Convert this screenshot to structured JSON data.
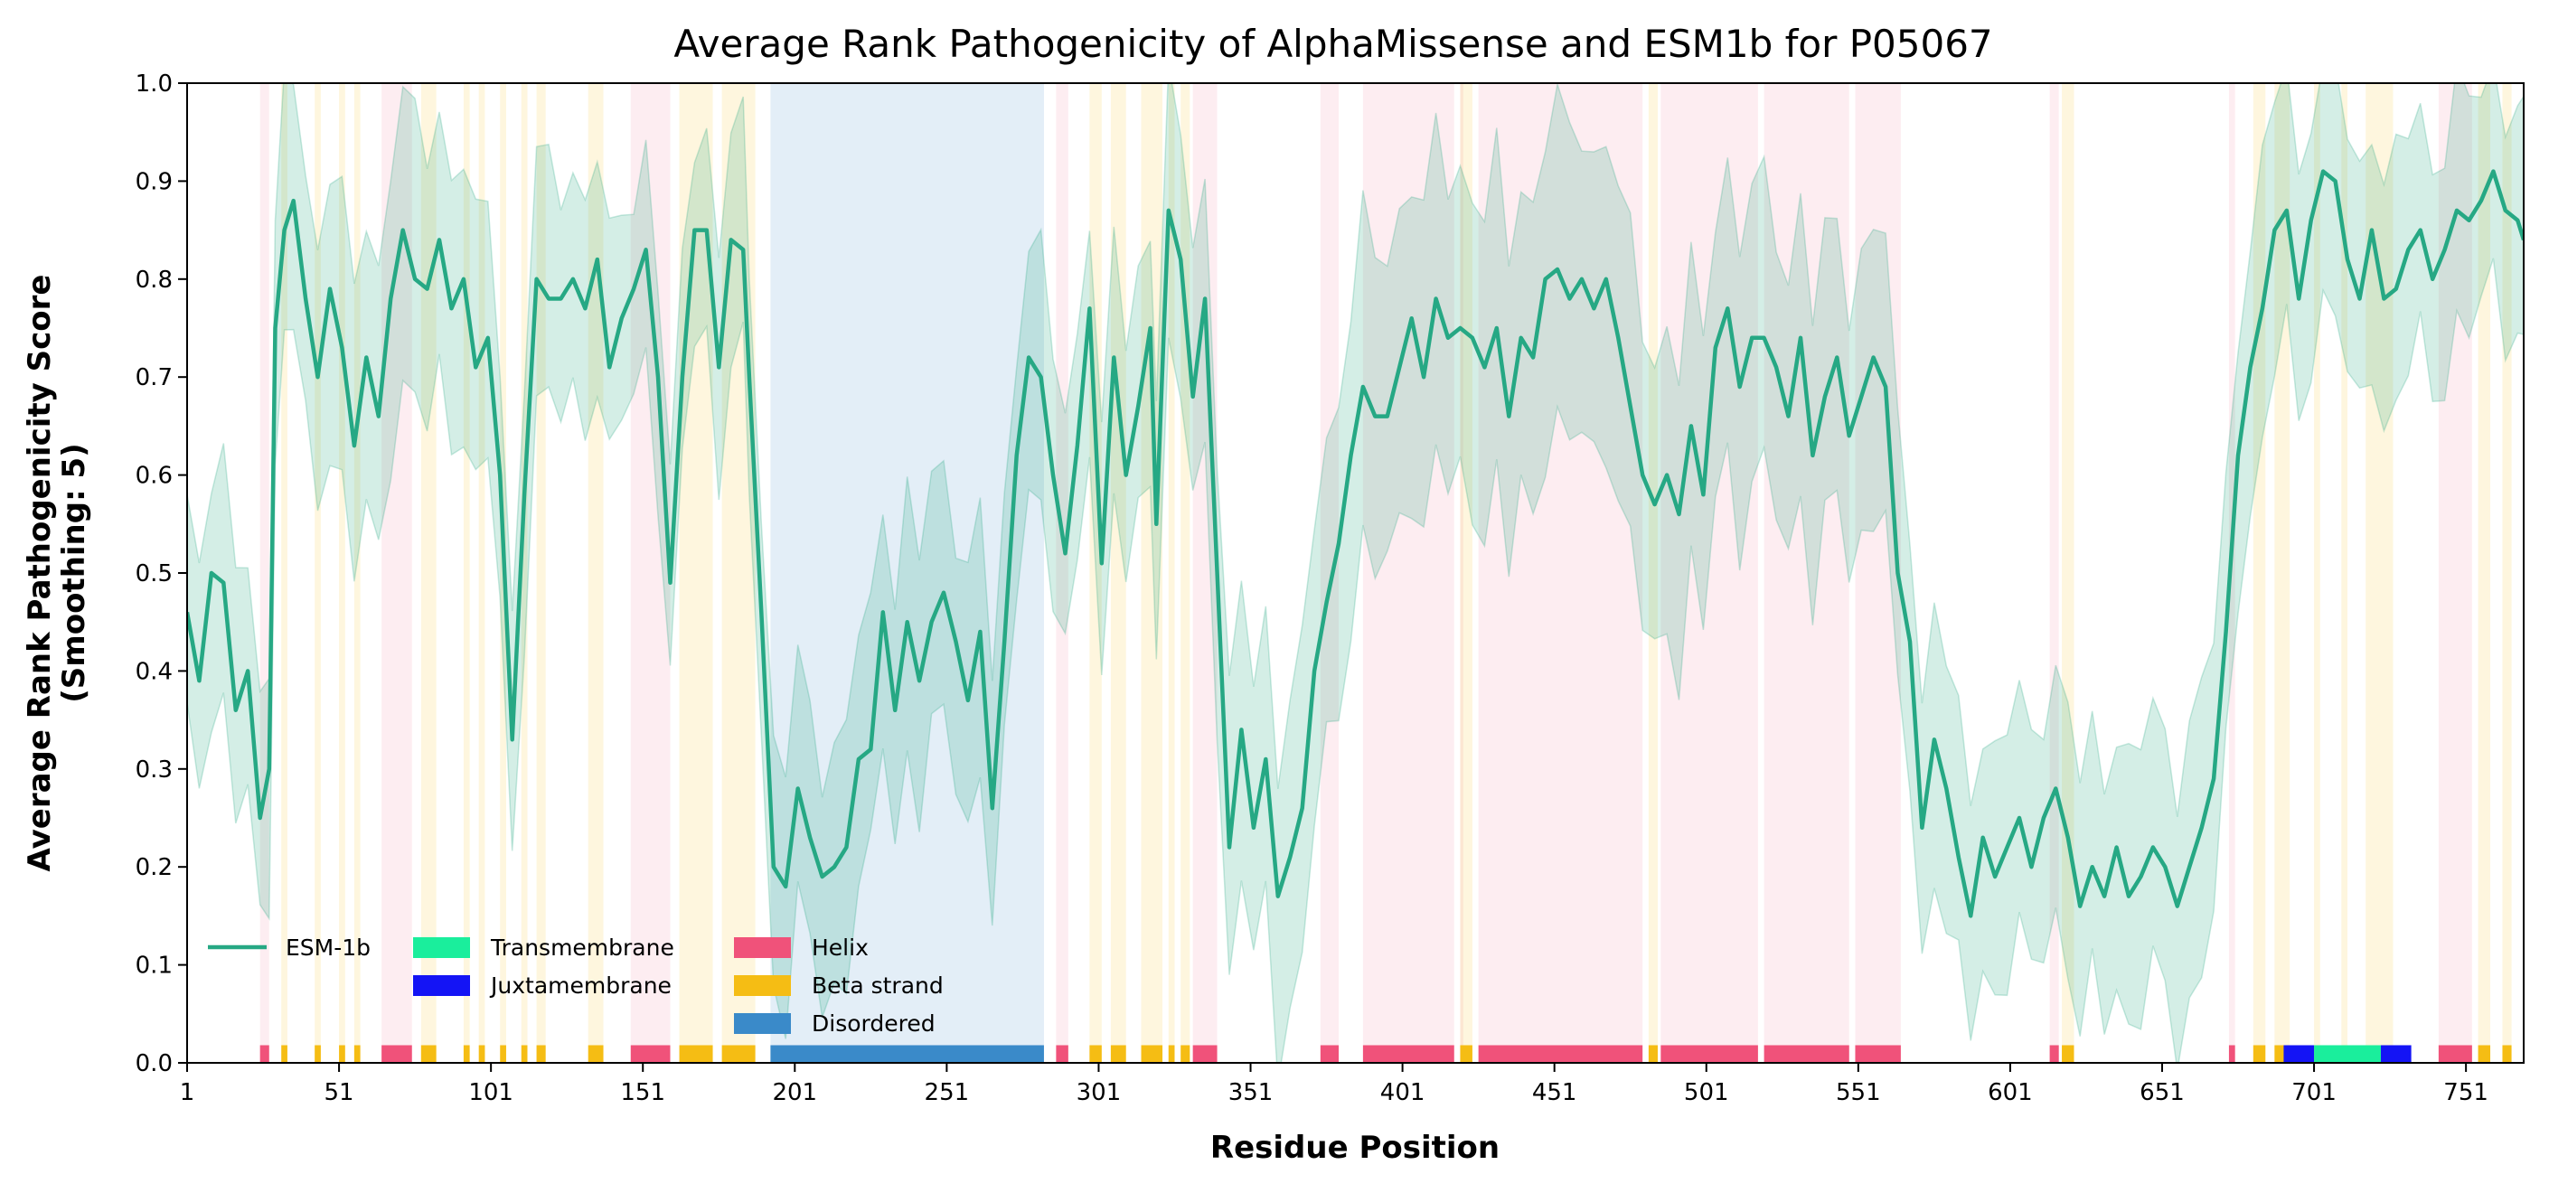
{
  "chart_data": {
    "type": "line",
    "title": "Average Rank Pathogenicity of AlphaMissense and ESM1b for P05067",
    "xlabel": "Residue Position",
    "ylabel_lines": [
      "Average Rank Pathogenicity Score",
      "(Smoothing: 5)"
    ],
    "xlim": [
      1,
      770
    ],
    "ylim": [
      0,
      1
    ],
    "xticks": [
      1,
      51,
      101,
      151,
      201,
      251,
      301,
      351,
      401,
      451,
      501,
      551,
      601,
      651,
      701,
      751
    ],
    "yticks": [
      0.0,
      0.1,
      0.2,
      0.3,
      0.4,
      0.5,
      0.6,
      0.7,
      0.8,
      0.9,
      1.0
    ],
    "ytick_labels": [
      "0.0",
      "0.1",
      "0.2",
      "0.3",
      "0.4",
      "0.5",
      "0.6",
      "0.7",
      "0.8",
      "0.9",
      "1.0"
    ],
    "legend_position": "lower-left",
    "series": [
      {
        "name": "ESM-1b",
        "color": "#26a884",
        "band_color": "#26a884",
        "points": [
          [
            1,
            0.46
          ],
          [
            5,
            0.39
          ],
          [
            9,
            0.5
          ],
          [
            13,
            0.49
          ],
          [
            17,
            0.36
          ],
          [
            21,
            0.4
          ],
          [
            25,
            0.25
          ],
          [
            28,
            0.3
          ],
          [
            30,
            0.75
          ],
          [
            33,
            0.85
          ],
          [
            36,
            0.88
          ],
          [
            40,
            0.78
          ],
          [
            44,
            0.7
          ],
          [
            48,
            0.79
          ],
          [
            52,
            0.73
          ],
          [
            56,
            0.63
          ],
          [
            60,
            0.72
          ],
          [
            64,
            0.66
          ],
          [
            68,
            0.78
          ],
          [
            72,
            0.85
          ],
          [
            76,
            0.8
          ],
          [
            80,
            0.79
          ],
          [
            84,
            0.84
          ],
          [
            88,
            0.77
          ],
          [
            92,
            0.8
          ],
          [
            96,
            0.71
          ],
          [
            100,
            0.74
          ],
          [
            104,
            0.6
          ],
          [
            108,
            0.33
          ],
          [
            112,
            0.58
          ],
          [
            116,
            0.8
          ],
          [
            120,
            0.78
          ],
          [
            124,
            0.78
          ],
          [
            128,
            0.8
          ],
          [
            132,
            0.77
          ],
          [
            136,
            0.82
          ],
          [
            140,
            0.71
          ],
          [
            144,
            0.76
          ],
          [
            148,
            0.79
          ],
          [
            152,
            0.83
          ],
          [
            156,
            0.7
          ],
          [
            160,
            0.49
          ],
          [
            164,
            0.7
          ],
          [
            168,
            0.85
          ],
          [
            172,
            0.85
          ],
          [
            176,
            0.71
          ],
          [
            180,
            0.84
          ],
          [
            184,
            0.83
          ],
          [
            186,
            0.7
          ],
          [
            190,
            0.46
          ],
          [
            194,
            0.2
          ],
          [
            198,
            0.18
          ],
          [
            202,
            0.28
          ],
          [
            206,
            0.23
          ],
          [
            210,
            0.19
          ],
          [
            214,
            0.2
          ],
          [
            218,
            0.22
          ],
          [
            222,
            0.31
          ],
          [
            226,
            0.32
          ],
          [
            230,
            0.46
          ],
          [
            234,
            0.36
          ],
          [
            238,
            0.45
          ],
          [
            242,
            0.39
          ],
          [
            246,
            0.45
          ],
          [
            250,
            0.48
          ],
          [
            254,
            0.43
          ],
          [
            258,
            0.37
          ],
          [
            262,
            0.44
          ],
          [
            266,
            0.26
          ],
          [
            270,
            0.43
          ],
          [
            274,
            0.62
          ],
          [
            278,
            0.72
          ],
          [
            282,
            0.7
          ],
          [
            286,
            0.6
          ],
          [
            290,
            0.52
          ],
          [
            294,
            0.63
          ],
          [
            298,
            0.77
          ],
          [
            302,
            0.51
          ],
          [
            306,
            0.72
          ],
          [
            310,
            0.6
          ],
          [
            314,
            0.67
          ],
          [
            318,
            0.75
          ],
          [
            320,
            0.55
          ],
          [
            324,
            0.87
          ],
          [
            328,
            0.82
          ],
          [
            332,
            0.68
          ],
          [
            336,
            0.78
          ],
          [
            340,
            0.5
          ],
          [
            344,
            0.22
          ],
          [
            348,
            0.34
          ],
          [
            352,
            0.24
          ],
          [
            356,
            0.31
          ],
          [
            360,
            0.17
          ],
          [
            364,
            0.21
          ],
          [
            368,
            0.26
          ],
          [
            372,
            0.4
          ],
          [
            376,
            0.47
          ],
          [
            380,
            0.53
          ],
          [
            384,
            0.62
          ],
          [
            388,
            0.69
          ],
          [
            392,
            0.66
          ],
          [
            396,
            0.66
          ],
          [
            400,
            0.71
          ],
          [
            404,
            0.76
          ],
          [
            408,
            0.7
          ],
          [
            412,
            0.78
          ],
          [
            416,
            0.74
          ],
          [
            420,
            0.75
          ],
          [
            424,
            0.74
          ],
          [
            428,
            0.71
          ],
          [
            432,
            0.75
          ],
          [
            436,
            0.66
          ],
          [
            440,
            0.74
          ],
          [
            444,
            0.72
          ],
          [
            448,
            0.8
          ],
          [
            452,
            0.81
          ],
          [
            456,
            0.78
          ],
          [
            460,
            0.8
          ],
          [
            464,
            0.77
          ],
          [
            468,
            0.8
          ],
          [
            472,
            0.74
          ],
          [
            476,
            0.67
          ],
          [
            480,
            0.6
          ],
          [
            484,
            0.57
          ],
          [
            488,
            0.6
          ],
          [
            492,
            0.56
          ],
          [
            496,
            0.65
          ],
          [
            500,
            0.58
          ],
          [
            504,
            0.73
          ],
          [
            508,
            0.77
          ],
          [
            512,
            0.69
          ],
          [
            516,
            0.74
          ],
          [
            520,
            0.74
          ],
          [
            524,
            0.71
          ],
          [
            528,
            0.66
          ],
          [
            532,
            0.74
          ],
          [
            536,
            0.62
          ],
          [
            540,
            0.68
          ],
          [
            544,
            0.72
          ],
          [
            548,
            0.64
          ],
          [
            552,
            0.68
          ],
          [
            556,
            0.72
          ],
          [
            560,
            0.69
          ],
          [
            564,
            0.5
          ],
          [
            568,
            0.43
          ],
          [
            572,
            0.24
          ],
          [
            576,
            0.33
          ],
          [
            580,
            0.28
          ],
          [
            584,
            0.21
          ],
          [
            588,
            0.15
          ],
          [
            592,
            0.23
          ],
          [
            596,
            0.19
          ],
          [
            600,
            0.22
          ],
          [
            604,
            0.25
          ],
          [
            608,
            0.2
          ],
          [
            612,
            0.25
          ],
          [
            616,
            0.28
          ],
          [
            620,
            0.23
          ],
          [
            624,
            0.16
          ],
          [
            628,
            0.2
          ],
          [
            632,
            0.17
          ],
          [
            636,
            0.22
          ],
          [
            640,
            0.17
          ],
          [
            644,
            0.19
          ],
          [
            648,
            0.22
          ],
          [
            652,
            0.2
          ],
          [
            656,
            0.16
          ],
          [
            660,
            0.2
          ],
          [
            664,
            0.24
          ],
          [
            668,
            0.29
          ],
          [
            672,
            0.44
          ],
          [
            676,
            0.62
          ],
          [
            680,
            0.71
          ],
          [
            684,
            0.77
          ],
          [
            688,
            0.85
          ],
          [
            692,
            0.87
          ],
          [
            696,
            0.78
          ],
          [
            700,
            0.86
          ],
          [
            704,
            0.91
          ],
          [
            708,
            0.9
          ],
          [
            712,
            0.82
          ],
          [
            716,
            0.78
          ],
          [
            720,
            0.85
          ],
          [
            724,
            0.78
          ],
          [
            728,
            0.79
          ],
          [
            732,
            0.83
          ],
          [
            736,
            0.85
          ],
          [
            740,
            0.8
          ],
          [
            744,
            0.83
          ],
          [
            748,
            0.87
          ],
          [
            752,
            0.86
          ],
          [
            756,
            0.88
          ],
          [
            760,
            0.91
          ],
          [
            764,
            0.87
          ],
          [
            768,
            0.86
          ],
          [
            770,
            0.84
          ]
        ],
        "band_halfwidth": [
          [
            1,
            0.12
          ],
          [
            30,
            0.12
          ],
          [
            60,
            0.15
          ],
          [
            100,
            0.13
          ],
          [
            160,
            0.1
          ],
          [
            190,
            0.12
          ],
          [
            250,
            0.13
          ],
          [
            300,
            0.12
          ],
          [
            340,
            0.14
          ],
          [
            380,
            0.16
          ],
          [
            440,
            0.16
          ],
          [
            560,
            0.14
          ],
          [
            600,
            0.12
          ],
          [
            670,
            0.14
          ],
          [
            700,
            0.13
          ],
          [
            770,
            0.11
          ]
        ]
      }
    ],
    "regions": {
      "Helix": {
        "color": "#f0527a",
        "spans": [
          [
            25,
            28
          ],
          [
            65,
            75
          ],
          [
            147,
            160
          ],
          [
            287,
            291
          ],
          [
            332,
            340
          ],
          [
            374,
            380
          ],
          [
            388,
            418
          ],
          [
            420,
            421
          ],
          [
            426,
            480
          ],
          [
            486,
            518
          ],
          [
            520,
            548
          ],
          [
            550,
            565
          ],
          [
            614,
            617
          ],
          [
            673,
            675
          ],
          [
            742,
            753
          ]
        ]
      },
      "Beta strand": {
        "color": "#f5bd14",
        "spans": [
          [
            32,
            34
          ],
          [
            43,
            45
          ],
          [
            51,
            53
          ],
          [
            56,
            58
          ],
          [
            78,
            83
          ],
          [
            92,
            94
          ],
          [
            97,
            99
          ],
          [
            104,
            106
          ],
          [
            111,
            113
          ],
          [
            116,
            119
          ],
          [
            133,
            138
          ],
          [
            163,
            174
          ],
          [
            177,
            188
          ],
          [
            298,
            302
          ],
          [
            305,
            310
          ],
          [
            315,
            322
          ],
          [
            324,
            326
          ],
          [
            328,
            331
          ],
          [
            420,
            424
          ],
          [
            482,
            485
          ],
          [
            618,
            622
          ],
          [
            681,
            685
          ],
          [
            688,
            693
          ],
          [
            701,
            703
          ],
          [
            710,
            712
          ],
          [
            718,
            727
          ],
          [
            755,
            759
          ],
          [
            763,
            766
          ]
        ]
      },
      "Disordered": {
        "color": "#3a8ac9",
        "spans": [
          [
            193,
            283
          ]
        ]
      },
      "Transmembrane": {
        "color": "#1aee9c",
        "spans": [
          [
            701,
            723
          ]
        ]
      },
      "Juxtamembrane": {
        "color": "#1414f5",
        "spans": [
          [
            691,
            701
          ],
          [
            723,
            733
          ]
        ]
      }
    },
    "legend": {
      "col1": [
        "ESM-1b"
      ],
      "col2": [
        "Transmembrane",
        "Juxtamembrane"
      ],
      "col3": [
        "Helix",
        "Beta strand",
        "Disordered"
      ]
    }
  }
}
